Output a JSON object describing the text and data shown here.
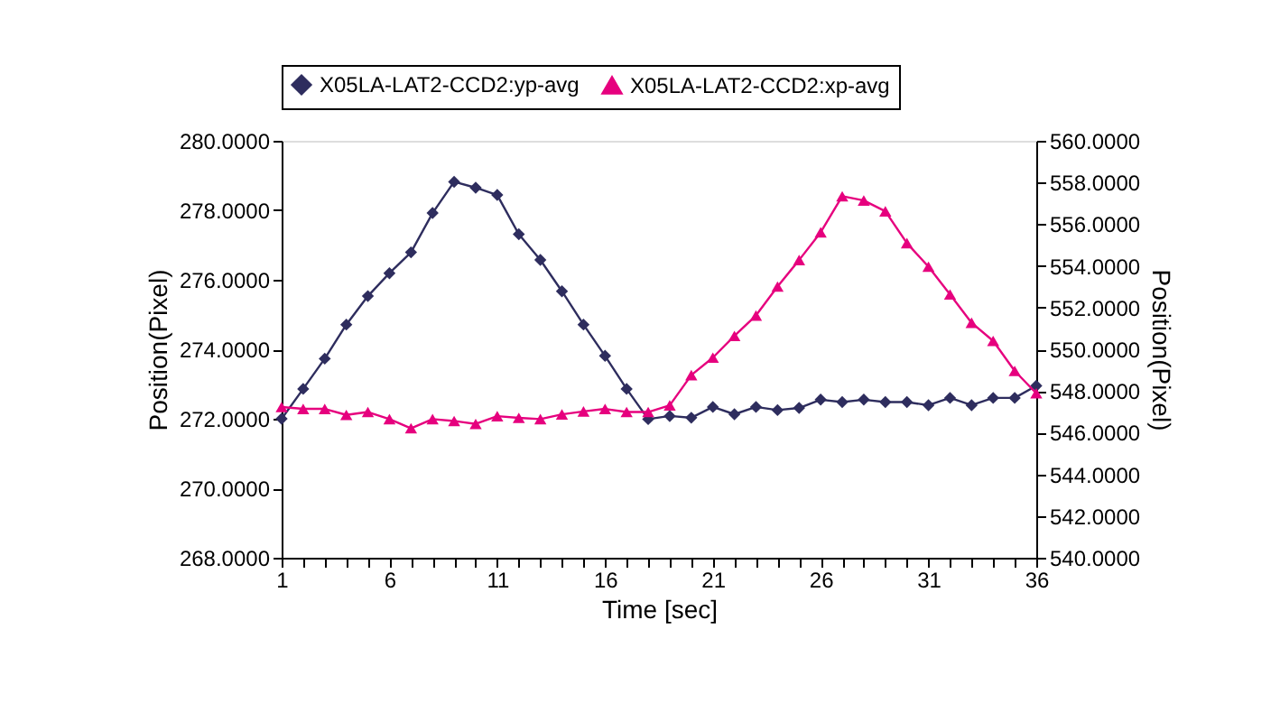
{
  "chart_data": {
    "type": "line",
    "xlabel": "Time [sec]",
    "ylabel": "Position(Pixel)",
    "y2label": "Position(Pixel)",
    "x": [
      1,
      2,
      3,
      4,
      5,
      6,
      7,
      8,
      9,
      10,
      11,
      12,
      13,
      14,
      15,
      16,
      17,
      18,
      19,
      20,
      21,
      22,
      23,
      24,
      25,
      26,
      27,
      28,
      29,
      30,
      31,
      32,
      33,
      34,
      35,
      36
    ],
    "series": [
      {
        "name": "X05LA-LAT2-CCD2:yp-avg",
        "color": "#2e2d5e",
        "marker": "diamond",
        "values": [
          272.0,
          272.86,
          273.73,
          274.71,
          275.53,
          276.19,
          276.79,
          277.92,
          278.82,
          278.65,
          278.44,
          277.31,
          276.57,
          275.67,
          274.71,
          273.81,
          272.86,
          271.99,
          272.08,
          272.03,
          272.34,
          272.13,
          272.34,
          272.25,
          272.31,
          272.55,
          272.48,
          272.55,
          272.48,
          272.48,
          272.39,
          272.6,
          272.39,
          272.6,
          272.6,
          272.95
        ]
      },
      {
        "name": "X05LA-LAT2-CCD2:xp-avg",
        "color": "#e6007e",
        "marker": "triangle",
        "axis": "y2",
        "values": [
          547.23,
          547.14,
          547.14,
          546.85,
          546.99,
          546.65,
          546.21,
          546.65,
          546.56,
          546.42,
          546.79,
          546.71,
          546.65,
          546.88,
          547.02,
          547.14,
          546.99,
          546.99,
          547.31,
          548.76,
          549.6,
          550.64,
          551.62,
          553.01,
          554.28,
          555.61,
          557.34,
          557.14,
          556.62,
          555.09,
          553.96,
          552.63,
          551.27,
          550.4,
          548.96,
          547.89
        ]
      }
    ],
    "xlim": [
      1,
      36
    ],
    "xticks": [
      1,
      {
        "value": 2,
        "label": null
      },
      {
        "value": 3,
        "label": null
      },
      {
        "value": 4,
        "label": null
      },
      {
        "value": 5,
        "label": null
      },
      6,
      {
        "value": 7,
        "label": null
      },
      {
        "value": 8,
        "label": null
      },
      {
        "value": 9,
        "label": null
      },
      {
        "value": 10,
        "label": null
      },
      11,
      {
        "value": 12,
        "label": null
      },
      {
        "value": 13,
        "label": null
      },
      {
        "value": 14,
        "label": null
      },
      {
        "value": 15,
        "label": null
      },
      16,
      {
        "value": 17,
        "label": null
      },
      {
        "value": 18,
        "label": null
      },
      {
        "value": 19,
        "label": null
      },
      {
        "value": 20,
        "label": null
      },
      21,
      {
        "value": 22,
        "label": null
      },
      {
        "value": 23,
        "label": null
      },
      {
        "value": 24,
        "label": null
      },
      {
        "value": 25,
        "label": null
      },
      26,
      {
        "value": 27,
        "label": null
      },
      {
        "value": 28,
        "label": null
      },
      {
        "value": 29,
        "label": null
      },
      {
        "value": 30,
        "label": null
      },
      31,
      {
        "value": 32,
        "label": null
      },
      {
        "value": 33,
        "label": null
      },
      {
        "value": 34,
        "label": null
      },
      {
        "value": 35,
        "label": null
      },
      36
    ],
    "ylim": [
      268,
      280
    ],
    "yticks": [
      {
        "value": 268,
        "label": "268.0000"
      },
      {
        "value": 270,
        "label": "270.0000"
      },
      {
        "value": 272,
        "label": "272.0000"
      },
      {
        "value": 274,
        "label": "274.0000"
      },
      {
        "value": 276,
        "label": "276.0000"
      },
      {
        "value": 278,
        "label": "278.0000"
      },
      {
        "value": 280,
        "label": "280.0000"
      }
    ],
    "y2lim": [
      540,
      560
    ],
    "y2ticks": [
      {
        "value": 540,
        "label": "540.0000"
      },
      {
        "value": 542,
        "label": "542.0000"
      },
      {
        "value": 544,
        "label": "544.0000"
      },
      {
        "value": 546,
        "label": "546.0000"
      },
      {
        "value": 548,
        "label": "548.0000"
      },
      {
        "value": 550,
        "label": "550.0000"
      },
      {
        "value": 552,
        "label": "552.0000"
      },
      {
        "value": 554,
        "label": "554.0000"
      },
      {
        "value": 556,
        "label": "556.0000"
      },
      {
        "value": 558,
        "label": "558.0000"
      },
      {
        "value": 560,
        "label": "560.0000"
      }
    ],
    "grid": false,
    "legend": "top"
  }
}
